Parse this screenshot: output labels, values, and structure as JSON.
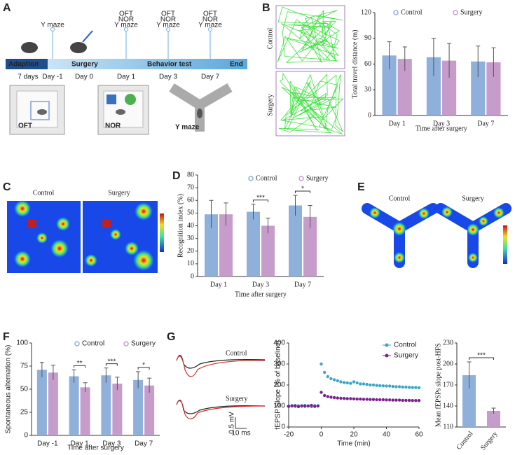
{
  "panels": {
    "letters": [
      "A",
      "B",
      "C",
      "D",
      "E",
      "F",
      "G"
    ],
    "timeline": {
      "phases": [
        "Adaption",
        "Surgery",
        "Behavior test",
        "End"
      ],
      "days": [
        "7 days",
        "Day -1",
        "Day 0",
        "Day 1",
        "Day 3",
        "Day 7"
      ],
      "tests": [
        [
          "Y maze"
        ],
        [
          "OFT",
          "NOR",
          "Y maze"
        ],
        [
          "OFT",
          "NOR",
          "Y maze"
        ],
        [
          "OFT",
          "NOR",
          "Y maze"
        ]
      ],
      "arenas": [
        "OFT",
        "NOR",
        "Y maze"
      ]
    },
    "tracks": [
      "Control",
      "Surgery"
    ],
    "heatmaps_nor": [
      "Control",
      "Surgery"
    ],
    "heatmaps_ymaze": [
      "Control",
      "Surgery"
    ],
    "traces": {
      "groups": [
        "Control",
        "Surgery"
      ],
      "scale_y": "0.5 mV",
      "scale_x": "10 ms"
    }
  },
  "chart_data": [
    {
      "type": "bar",
      "categories": [
        "Day 1",
        "Day 3",
        "Day 7"
      ],
      "series": [
        {
          "name": "Control",
          "color": "#8fb0da",
          "values": [
            70,
            68,
            63
          ],
          "errors": [
            16,
            22,
            18
          ]
        },
        {
          "name": "Surgery",
          "color": "#c69ccb",
          "values": [
            66,
            64,
            62
          ],
          "errors": [
            14,
            20,
            17
          ]
        }
      ],
      "ylabel": "Total travel distance (m)",
      "xlabel": "Time after surgery",
      "ylim": [
        0,
        120
      ],
      "yticks": [
        0,
        30,
        60,
        90,
        120
      ],
      "annotations": []
    },
    {
      "type": "bar",
      "categories": [
        "Day 1",
        "Day 3",
        "Day 7"
      ],
      "series": [
        {
          "name": "Control",
          "color": "#8fb0da",
          "values": [
            49,
            51,
            56
          ],
          "errors": [
            11,
            6,
            8
          ]
        },
        {
          "name": "Surgery",
          "color": "#c69ccb",
          "values": [
            49,
            40,
            47
          ],
          "errors": [
            9,
            6,
            9
          ]
        }
      ],
      "ylabel": "Recognition index (%)",
      "xlabel": "Time after surgery",
      "ylim": [
        0,
        80
      ],
      "yticks": [
        0,
        10,
        20,
        30,
        40,
        50,
        60,
        70,
        80
      ],
      "annotations": [
        {
          "text": "***",
          "x": "Day 3"
        },
        {
          "text": "*",
          "x": "Day 7"
        }
      ]
    },
    {
      "type": "bar",
      "categories": [
        "Day -1",
        "Day 1",
        "Day 3",
        "Day 7"
      ],
      "series": [
        {
          "name": "Control",
          "color": "#8fb0da",
          "values": [
            71,
            64,
            65,
            60
          ],
          "errors": [
            8,
            7,
            8,
            9
          ]
        },
        {
          "name": "Surgery",
          "color": "#c69ccb",
          "values": [
            68,
            52,
            56,
            54
          ],
          "errors": [
            8,
            5,
            7,
            8
          ]
        }
      ],
      "ylabel": "Spontaneous alternation (%)",
      "xlabel": "Time after surgery",
      "ylim": [
        0,
        100
      ],
      "yticks": [
        0,
        25,
        50,
        75,
        100
      ],
      "annotations": [
        {
          "text": "**",
          "x": "Day 1"
        },
        {
          "text": "***",
          "x": "Day 3"
        },
        {
          "text": "*",
          "x": "Day 7"
        }
      ]
    },
    {
      "type": "scatter",
      "x": [
        -20,
        -18,
        -16,
        -14,
        -12,
        -10,
        -8,
        -6,
        -4,
        -2,
        0,
        2,
        4,
        6,
        8,
        10,
        12,
        14,
        16,
        18,
        20,
        22,
        24,
        26,
        28,
        30,
        32,
        34,
        36,
        38,
        40,
        42,
        44,
        46,
        48,
        50,
        52,
        54,
        56,
        58,
        60
      ],
      "series": [
        {
          "name": "Control",
          "color": "#3aa6c4",
          "values": [
            100,
            102,
            98,
            101,
            99,
            103,
            100,
            97,
            102,
            101,
            300,
            260,
            240,
            230,
            225,
            220,
            215,
            212,
            210,
            208,
            215,
            210,
            205,
            205,
            203,
            200,
            200,
            198,
            197,
            196,
            195,
            195,
            193,
            192,
            192,
            190,
            190,
            189,
            188,
            188,
            187
          ]
        },
        {
          "name": "Surgery",
          "color": "#7a1f8c",
          "values": [
            98,
            100,
            102,
            97,
            101,
            99,
            100,
            103,
            98,
            100,
            165,
            150,
            145,
            142,
            140,
            138,
            137,
            136,
            135,
            135,
            134,
            133,
            133,
            132,
            132,
            131,
            131,
            130,
            130,
            130,
            129,
            129,
            128,
            128,
            128,
            127,
            127,
            127,
            126,
            126,
            126
          ]
        }
      ],
      "xlabel": "Time (min)",
      "ylabel": "fEPSP Slope (% of baseline)",
      "xlim": [
        -20,
        60
      ],
      "xticks": [
        -20,
        0,
        20,
        40,
        60
      ],
      "ylim": [
        0,
        400
      ],
      "yticks": [
        0,
        100,
        200,
        300,
        400
      ]
    },
    {
      "type": "bar",
      "categories": [
        "Control",
        "Surgery"
      ],
      "values": [
        184,
        133
      ],
      "errors": [
        19,
        4
      ],
      "colors": [
        "#8fb0da",
        "#c69ccb"
      ],
      "ylabel": "Mean fEPSPs slope post-HFS",
      "ylim": [
        110,
        230
      ],
      "yticks": [
        110,
        140,
        170,
        200,
        230
      ],
      "annotations": [
        {
          "text": "***",
          "x": [
            "Control",
            "Surgery"
          ]
        }
      ]
    }
  ]
}
